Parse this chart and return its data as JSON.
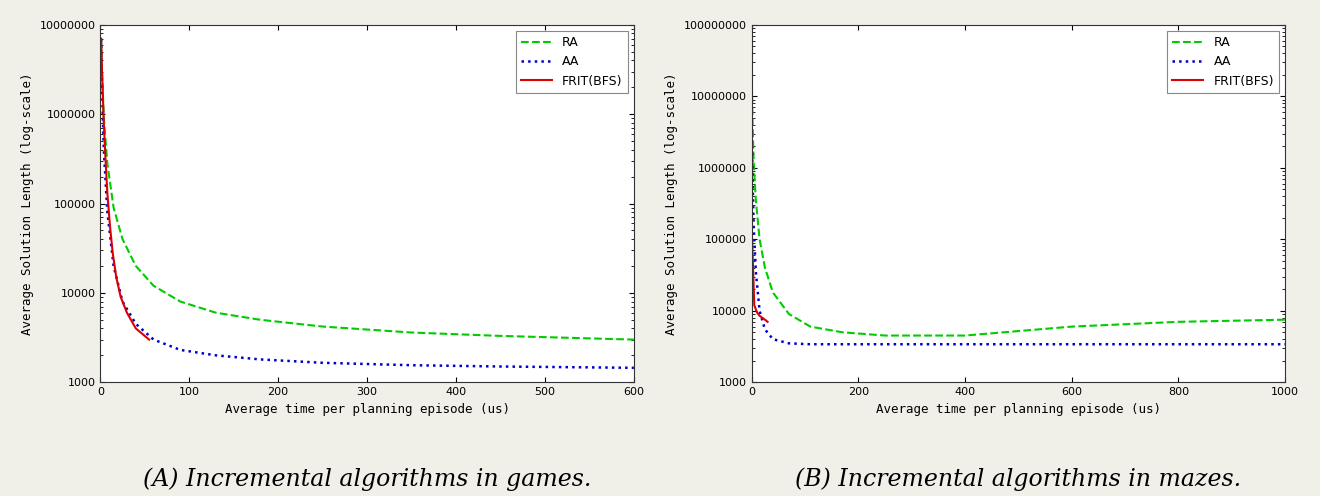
{
  "subplot_A": {
    "xlabel": "Average time per planning episode (us)",
    "ylabel": "Average Solution Length (log-scale)",
    "xlim": [
      0,
      600
    ],
    "ylim_log": [
      1000,
      10000000
    ],
    "xticks": [
      0,
      100,
      200,
      300,
      400,
      500,
      600
    ],
    "frit_bfs": {
      "x": [
        1,
        2,
        4,
        6,
        8,
        11,
        14,
        18,
        23,
        30,
        40,
        55
      ],
      "y": [
        7000000,
        3000000,
        800000,
        300000,
        130000,
        55000,
        28000,
        15000,
        9000,
        6000,
        4000,
        3000
      ],
      "color": "#dd0000",
      "linestyle": "solid",
      "linewidth": 1.5,
      "label": "FRIT(BFS)"
    },
    "ra": {
      "x": [
        1,
        2,
        4,
        8,
        15,
        25,
        40,
        60,
        90,
        130,
        180,
        250,
        350,
        450,
        600
      ],
      "y": [
        7000000,
        3000000,
        900000,
        280000,
        90000,
        40000,
        20000,
        12000,
        8000,
        6000,
        5000,
        4200,
        3600,
        3300,
        3000
      ],
      "color": "#00cc00",
      "linestyle": "dashed",
      "linewidth": 1.5,
      "label": "RA"
    },
    "aa": {
      "x": [
        1,
        2,
        4,
        8,
        15,
        25,
        40,
        60,
        90,
        130,
        180,
        250,
        350,
        450,
        600
      ],
      "y": [
        7000000,
        2000000,
        400000,
        80000,
        20000,
        8000,
        4500,
        3000,
        2300,
        2000,
        1800,
        1650,
        1550,
        1500,
        1450
      ],
      "color": "#0000cc",
      "linestyle": "dotted",
      "linewidth": 1.8,
      "label": "AA"
    }
  },
  "subplot_B": {
    "xlabel": "Average time per planning episode (us)",
    "ylabel": "Average Solution Length (log-scale)",
    "xlim": [
      0,
      1000
    ],
    "ylim_log": [
      1000,
      100000000
    ],
    "xticks": [
      0,
      200,
      400,
      600,
      800,
      1000
    ],
    "frit_bfs": {
      "x": [
        1,
        5,
        10,
        15,
        20,
        25,
        30
      ],
      "y": [
        100000,
        12000,
        9500,
        8500,
        8000,
        7500,
        7000
      ],
      "color": "#dd0000",
      "linestyle": "solid",
      "linewidth": 1.5,
      "label": "FRIT(BFS)"
    },
    "ra": {
      "x": [
        1,
        2,
        4,
        8,
        15,
        25,
        40,
        70,
        110,
        170,
        250,
        400,
        600,
        800,
        1000
      ],
      "y": [
        10000000,
        4000000,
        1200000,
        350000,
        100000,
        40000,
        18000,
        9000,
        6000,
        5000,
        4500,
        4500,
        6000,
        7000,
        7500
      ],
      "color": "#00cc00",
      "linestyle": "dashed",
      "linewidth": 1.5,
      "label": "RA"
    },
    "aa": {
      "x": [
        1,
        2,
        4,
        8,
        15,
        25,
        40,
        70,
        110,
        170,
        250,
        400,
        600,
        800,
        1000
      ],
      "y": [
        2000000,
        600000,
        150000,
        35000,
        10000,
        5500,
        4000,
        3500,
        3400,
        3400,
        3400,
        3400,
        3400,
        3400,
        3400
      ],
      "color": "#0000cc",
      "linestyle": "dotted",
      "linewidth": 1.8,
      "label": "AA"
    }
  },
  "background_color": "#f0efe8",
  "plot_bg_color": "#ffffff",
  "caption_fontsize": 17,
  "caption_font": "serif"
}
